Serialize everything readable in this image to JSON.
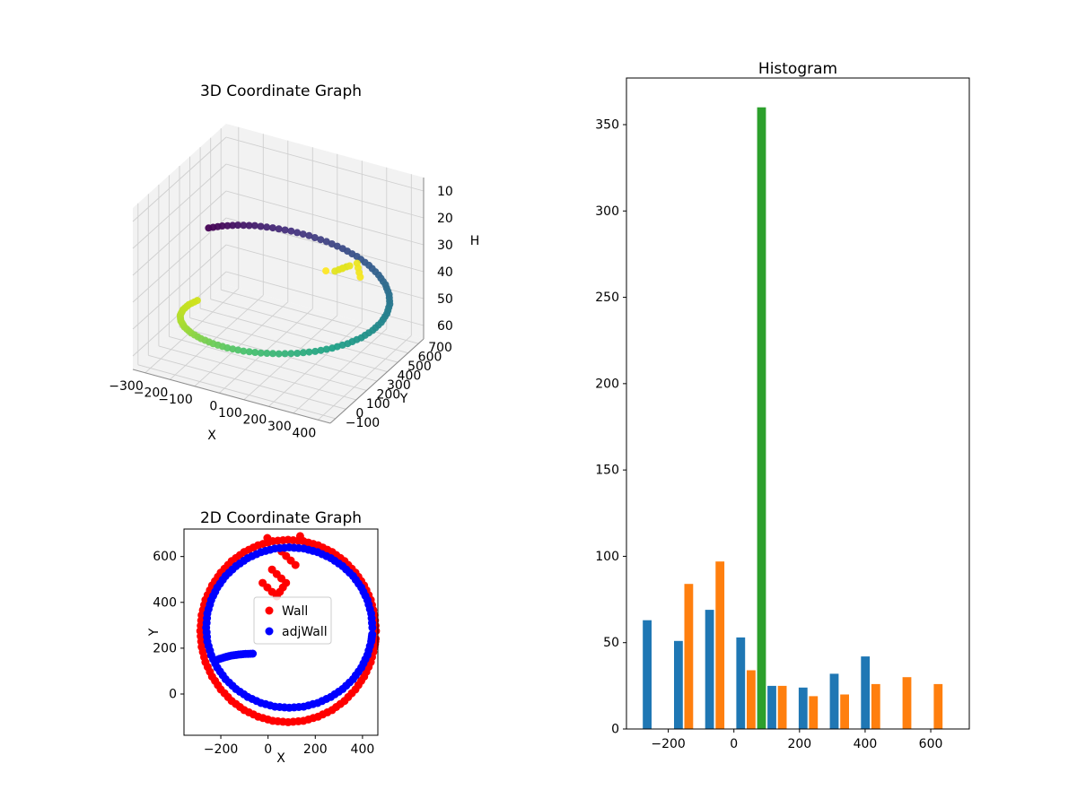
{
  "figure": {
    "background": "#ffffff"
  },
  "chart_data": [
    {
      "id": "coord3d",
      "type": "scatter",
      "projection": "3d",
      "title": "3D Coordinate Graph",
      "xlabel": "X",
      "ylabel": "Y",
      "zlabel": "H",
      "x_ticks": [
        -300,
        -200,
        -100,
        0,
        100,
        200,
        300,
        400
      ],
      "y_ticks": [
        -100,
        0,
        100,
        200,
        300,
        400,
        500,
        600,
        700
      ],
      "z_ticks": [
        10,
        20,
        30,
        40,
        50,
        60
      ],
      "z_axis_inverted": true,
      "xlim": [
        -350,
        450
      ],
      "ylim": [
        -150,
        750
      ],
      "zlim": [
        5,
        65
      ],
      "colormap": "viridis",
      "colormap_stops": [
        "#440154",
        "#46327e",
        "#365c8d",
        "#277f8e",
        "#1fa187",
        "#4ac16d",
        "#a0da39",
        "#d0e11c",
        "#fde725"
      ],
      "points": [
        [
          -277,
          407,
          30
        ],
        [
          -248,
          470,
          30.7
        ],
        [
          -209,
          527,
          31.4
        ],
        [
          -161,
          576,
          32.1
        ],
        [
          -105,
          616,
          32.9
        ],
        [
          -43,
          646,
          33.6
        ],
        [
          22,
          664,
          34.3
        ],
        [
          90,
          670,
          35
        ],
        [
          158,
          664,
          35.7
        ],
        [
          223,
          646,
          36.4
        ],
        [
          285,
          616,
          37.1
        ],
        [
          341,
          576,
          37.9
        ],
        [
          389,
          527,
          38.6
        ],
        [
          428,
          470,
          39.3
        ],
        [
          457,
          407,
          40
        ],
        [
          474,
          339,
          40.7
        ],
        [
          480,
          270,
          41.4
        ],
        [
          474,
          201,
          42.1
        ],
        [
          457,
          133,
          42.9
        ],
        [
          428,
          70,
          43.6
        ],
        [
          389,
          13,
          44.3
        ],
        [
          341,
          -36,
          45
        ],
        [
          285,
          -76,
          45.7
        ],
        [
          223,
          -106,
          46.4
        ],
        [
          158,
          -124,
          47.1
        ],
        [
          90,
          -130,
          47.9
        ],
        [
          22,
          -124,
          48.6
        ],
        [
          -43,
          -106,
          49.3
        ],
        [
          -105,
          -76,
          50
        ],
        [
          -161,
          -36,
          50.7
        ],
        [
          -209,
          13,
          51.4
        ],
        [
          -248,
          70,
          52.1
        ],
        [
          -277,
          133,
          52.9
        ],
        [
          -294,
          201,
          53.6
        ],
        [
          -300,
          270,
          54.3
        ],
        [
          -294,
          339,
          55
        ],
        [
          230,
          530,
          36
        ],
        [
          200,
          490,
          37
        ],
        [
          260,
          560,
          35
        ],
        [
          290,
          520,
          38
        ],
        [
          180,
          450,
          36
        ]
      ]
    },
    {
      "id": "coord2d",
      "type": "scatter",
      "title": "2D Coordinate Graph",
      "xlabel": "X",
      "ylabel": "Y",
      "x_ticks": [
        -200,
        0,
        200,
        400
      ],
      "y_ticks": [
        0,
        200,
        400,
        600
      ],
      "xlim": [
        -356,
        465
      ],
      "ylim": [
        -180,
        720
      ],
      "legend": {
        "visible": true,
        "location": "center"
      },
      "series": [
        {
          "name": "Wall",
          "color": "#ff0000",
          "marker": "circle",
          "points": [
            [
              457,
              275
            ],
            [
              451,
              344
            ],
            [
              435,
              411
            ],
            [
              407,
              474
            ],
            [
              370,
              530
            ],
            [
              324,
              580
            ],
            [
              271,
              620
            ],
            [
              212,
              649
            ],
            [
              150,
              667
            ],
            [
              85,
              673
            ],
            [
              20,
              667
            ],
            [
              -42,
              649
            ],
            [
              -101,
              620
            ],
            [
              -154,
              580
            ],
            [
              -200,
              530
            ],
            [
              -237,
              474
            ],
            [
              -265,
              411
            ],
            [
              -281,
              344
            ],
            [
              -287,
              275
            ],
            [
              -281,
              206
            ],
            [
              -265,
              139
            ],
            [
              -237,
              76
            ],
            [
              -200,
              20
            ],
            [
              -154,
              -30
            ],
            [
              -101,
              -70
            ],
            [
              -42,
              -99
            ],
            [
              20,
              -117
            ],
            [
              85,
              -123
            ],
            [
              150,
              -117
            ],
            [
              212,
              -99
            ],
            [
              271,
              -70
            ],
            [
              324,
              -30
            ],
            [
              370,
              20
            ],
            [
              407,
              76
            ],
            [
              435,
              139
            ],
            [
              451,
              206
            ],
            [
              456,
              241
            ],
            [
              -3,
              681
            ],
            [
              136,
              689
            ],
            [
              57,
              622
            ],
            [
              116,
              563
            ],
            [
              17,
              543
            ],
            [
              76,
              485
            ],
            [
              37,
              426
            ],
            [
              -23,
              485
            ]
          ]
        },
        {
          "name": "adjWall",
          "color": "#0000ff",
          "marker": "circle",
          "points": [
            [
              442,
              290
            ],
            [
              437,
              351
            ],
            [
              421,
              410
            ],
            [
              395,
              465
            ],
            [
              360,
              515
            ],
            [
              316,
              558
            ],
            [
              266,
              593
            ],
            [
              210,
              619
            ],
            [
              151,
              635
            ],
            [
              90,
              640
            ],
            [
              29,
              635
            ],
            [
              -30,
              619
            ],
            [
              -86,
              593
            ],
            [
              -136,
              558
            ],
            [
              -180,
              515
            ],
            [
              -215,
              465
            ],
            [
              -241,
              410
            ],
            [
              -257,
              351
            ],
            [
              -262,
              290
            ],
            [
              -257,
              229
            ],
            [
              -241,
              170
            ],
            [
              -215,
              115
            ],
            [
              -180,
              65
            ],
            [
              -136,
              22
            ],
            [
              -86,
              -13
            ],
            [
              -30,
              -39
            ],
            [
              29,
              -55
            ],
            [
              90,
              -60
            ],
            [
              151,
              -55
            ],
            [
              210,
              -39
            ],
            [
              266,
              -13
            ],
            [
              316,
              22
            ],
            [
              360,
              65
            ],
            [
              395,
              115
            ],
            [
              421,
              170
            ],
            [
              437,
              229
            ],
            [
              441,
              260
            ],
            [
              -215,
              150
            ],
            [
              -185,
              160
            ],
            [
              -155,
              168
            ],
            [
              -125,
              172
            ],
            [
              -95,
              175
            ],
            [
              -65,
              176
            ]
          ]
        }
      ]
    },
    {
      "id": "histogram",
      "type": "bar",
      "title": "Histogram",
      "xlabel": "",
      "ylabel": "",
      "x_ticks": [
        -200,
        0,
        200,
        400,
        600
      ],
      "y_ticks": [
        0,
        50,
        100,
        150,
        200,
        250,
        300,
        350
      ],
      "xlim": [
        -327.5,
        717.5
      ],
      "ylim": [
        0,
        377
      ],
      "bin_edges": [
        -280,
        -185,
        -90,
        5,
        100,
        195,
        290,
        385,
        480,
        575,
        670
      ],
      "series": [
        {
          "color": "#1f77b4",
          "values": [
            63,
            51,
            69,
            53,
            25,
            24,
            32,
            42,
            0,
            0
          ]
        },
        {
          "color": "#ff7f0e",
          "values": [
            0,
            84,
            97,
            34,
            25,
            19,
            20,
            26,
            30,
            26
          ]
        },
        {
          "color": "#2ca02c",
          "values": [
            0,
            0,
            0,
            360,
            0,
            0,
            0,
            0,
            0,
            0
          ]
        }
      ]
    }
  ]
}
